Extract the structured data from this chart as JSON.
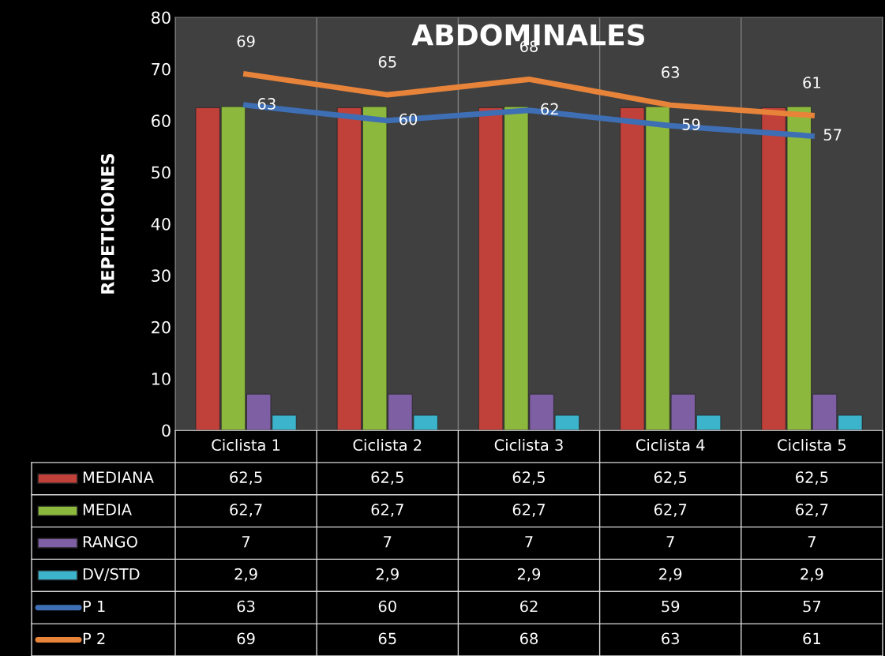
{
  "chart_data": {
    "type": "bar",
    "title": "ABDOMINALES",
    "ylabel": "REPETICIONES",
    "categories": [
      "Ciclista 1",
      "Ciclista 2",
      "Ciclista 3",
      "Ciclista 4",
      "Ciclista 5"
    ],
    "series": [
      {
        "name": "MEDIANA",
        "color": "#c0403a",
        "values": [
          62.5,
          62.5,
          62.5,
          62.5,
          62.5
        ],
        "value_labels": [
          "62,5",
          "62,5",
          "62,5",
          "62,5",
          "62,5"
        ]
      },
      {
        "name": "MEDIA",
        "color": "#8db83e",
        "values": [
          62.7,
          62.7,
          62.7,
          62.7,
          62.7
        ],
        "value_labels": [
          "62,7",
          "62,7",
          "62,7",
          "62,7",
          "62,7"
        ]
      },
      {
        "name": "RANGO",
        "color": "#7e5fa3",
        "values": [
          7,
          7,
          7,
          7,
          7
        ],
        "value_labels": [
          "7",
          "7",
          "7",
          "7",
          "7"
        ]
      },
      {
        "name": "DV/STD",
        "color": "#3cb4cc",
        "values": [
          2.9,
          2.9,
          2.9,
          2.9,
          2.9
        ],
        "value_labels": [
          "2,9",
          "2,9",
          "2,9",
          "2,9",
          "2,9"
        ]
      },
      {
        "name": "P 1",
        "type": "line",
        "color": "#3e6eb4",
        "values": [
          63,
          60,
          62,
          59,
          57
        ],
        "value_labels": [
          "63",
          "60",
          "62",
          "59",
          "57"
        ]
      },
      {
        "name": "P 2",
        "type": "line",
        "color": "#e8833a",
        "values": [
          69,
          65,
          68,
          63,
          61
        ],
        "value_labels": [
          "69",
          "65",
          "68",
          "63",
          "61"
        ]
      }
    ],
    "ylim": [
      0,
      80
    ],
    "yticks": [
      0,
      10,
      20,
      30,
      40,
      50,
      60,
      70,
      80
    ],
    "grid": "x",
    "legend": "bottom",
    "line_style": "solid",
    "marker": "none"
  }
}
